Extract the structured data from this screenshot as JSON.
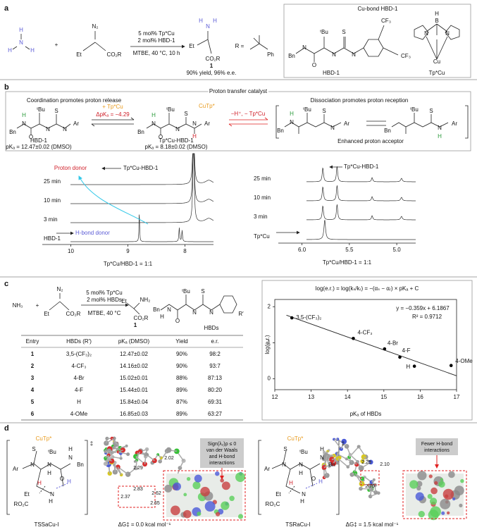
{
  "panel_a": {
    "label": "a",
    "n": "N",
    "h": "H",
    "plus": "+",
    "n2": "N₂",
    "et": "Et",
    "co2r": "CO₂R",
    "reagent1": "5 mol% Tp*Cu",
    "reagent2": "2 mol% HBD-1",
    "conditions": "MTBE, 40 °C, 10 h",
    "compound": "1",
    "result": "90% yield, 96% e.e.",
    "r_def": "R =",
    "ph": "Ph",
    "box_title": "Cu-bond HBD-1",
    "tbu": "ᵗBu",
    "s": "S",
    "o": "O",
    "bn": "Bn",
    "cf3": "CF₃",
    "b": "B",
    "cu": "Cu",
    "hbd_name": "HBD-1",
    "cu_name": "Tp*Cu"
  },
  "panel_b": {
    "label": "b",
    "box_title": "Proton transfer catalyst",
    "left_heading": "Coordination promotes proton release",
    "right_heading": "Dissociation promotes proton reception",
    "add_cu": "+ Tp*Cu",
    "dpka": "ΔpKₐ = −4.29",
    "remove": "−H⁺, − Tp*Cu",
    "hbd_name": "HBD-1",
    "hbd_pka": "pKₐ = 12.47±0.02 (DMSO)",
    "complex_name": "Tp*Cu-HBD-1",
    "complex_pka": "pKₐ = 8.18±0.02 (DMSO)",
    "cutp": "CuTp*",
    "acceptor": "Enhanced proton acceptor",
    "ar": "Ar",
    "n": "N",
    "h": "H",
    "o": "O",
    "s": "S",
    "bn": "Bn",
    "tbu": "ᵗBu",
    "nmr_left": {
      "proton_donor": "Proton donor",
      "complex": "Tp*Cu-HBD-1",
      "traces": [
        "25 min",
        "10 min",
        "3 min",
        "HBD-1"
      ],
      "hbond_donor": "H-bond donor",
      "xlim": [
        10.5,
        7.5
      ],
      "xticks": [
        10,
        9,
        8
      ],
      "caption": "Tp*Cu/HBD-1 = 1:1"
    },
    "nmr_right": {
      "complex": "Tp*Cu-HBD-1",
      "traces": [
        "25 min",
        "10 min",
        "3 min",
        "Tp*Cu"
      ],
      "xlim": [
        6.25,
        4.8
      ],
      "xticks": [
        {
          "value": 6,
          "label": "6.0"
        },
        5.5,
        {
          "value": 5,
          "label": "5.0"
        }
      ],
      "caption": "Tp*Cu/HBD-1 = 1:1"
    }
  },
  "panel_c": {
    "label": "c",
    "nh3": "NH₃",
    "plus": "+",
    "n2": "N₂",
    "et": "Et",
    "co2r": "CO₂R",
    "reagent1": "5 mol% Tp*Cu",
    "reagent2": "2 mol% HBDs",
    "conditions": "MTBE, 40 °C",
    "nh2": "NH₂",
    "compound": "1",
    "hbds": "HBDs",
    "r_prime": "R′",
    "tbu": "ᵗBu",
    "s": "S",
    "o": "O",
    "bn": "Bn",
    "n": "N",
    "h": "H",
    "table": {
      "header": [
        "Entry",
        "HBDs (R′)",
        "pKₐ (DMSO)",
        "Yield",
        "e.r."
      ],
      "rows": [
        [
          1,
          "3,5-(CF₃)₂",
          "12.47±0.02",
          "90%",
          "98:2"
        ],
        [
          2,
          "4-CF₃",
          "14.16±0.02",
          "90%",
          "93:7"
        ],
        [
          3,
          "4-Br",
          "15.02±0.01",
          "88%",
          "87:13"
        ],
        [
          4,
          "4-F",
          "15.44±0.01",
          "89%",
          "80:20"
        ],
        [
          5,
          "H",
          "15.84±0.04",
          "87%",
          "69:31"
        ],
        [
          6,
          "4-OMe",
          "16.85±0.03",
          "89%",
          "63:27"
        ]
      ]
    }
  },
  "chart_data": {
    "type": "scatter",
    "title": "log(e.r.) = log(kₛ/kᵣ) = −(αₛ − αᵣ) × pKₐ + C",
    "equation": "y = −0.359x + 6.1867",
    "r2": "R² = 0.9712",
    "x_label": "pKₐ of HBDs",
    "y_label": "log(e.r.)",
    "x": [
      12.47,
      14.16,
      15.02,
      15.44,
      15.84,
      16.85
    ],
    "values": [
      1.69,
      1.12,
      0.83,
      0.6,
      0.35,
      0.37
    ],
    "point_labels": [
      "3,5-(CF₃)₂",
      "4-CF₃",
      "4-Br",
      "4-F",
      "H",
      "4-OMe"
    ],
    "color": "#000000",
    "fit": {
      "slope": -0.359,
      "intercept": 6.1867
    },
    "xlim": [
      12,
      17
    ],
    "ylim": [
      -0.3,
      2.2
    ],
    "xticks": [
      12,
      13,
      14,
      15,
      16,
      17
    ],
    "yticks": [
      0,
      1,
      2
    ]
  },
  "panel_d": {
    "label": "d",
    "cutp": "CuTp*",
    "dagger": "‡",
    "ar": "Ar",
    "s": "S",
    "n": "N",
    "h": "H",
    "o": "O",
    "bn": "Bn",
    "tbu": "ᵗBu",
    "et": "Et",
    "ro2c": "RO₂C",
    "left": {
      "name": "TSSaCu-I",
      "energy": "ΔG‡ = 0.0 kcal mol⁻¹",
      "distances": [
        "2.29",
        "2.02",
        "2.83",
        "2.37",
        "2.62",
        "2.65"
      ],
      "callout": [
        "Sign(λ₂)ρ ≤ 0",
        "van der Waals",
        "and H-bond",
        "interactions"
      ]
    },
    "right": {
      "name": "TSRaCu-I",
      "energy": "ΔG‡ = 1.5 kcal mol⁻¹",
      "distances": [
        "2.29",
        "2.10",
        "2.70"
      ],
      "callout": [
        "Fewer H-bond",
        "interactions"
      ]
    }
  }
}
